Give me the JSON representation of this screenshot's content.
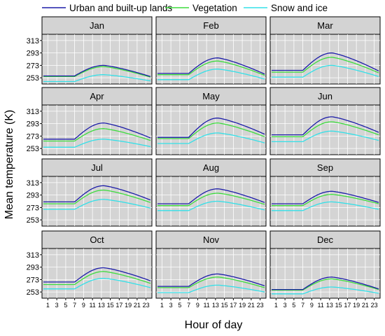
{
  "chart_data": {
    "type": "line",
    "title": "",
    "xlabel": "Hour of day",
    "ylabel": "Mean temperature (K)",
    "ylim": [
      243,
      323
    ],
    "xlim": [
      0,
      24
    ],
    "y_ticks": [
      253,
      273,
      293,
      313
    ],
    "x_ticks": [
      1,
      3,
      5,
      7,
      9,
      11,
      13,
      15,
      17,
      19,
      21,
      23
    ],
    "grid": true,
    "legend_position": "top",
    "legend": [
      {
        "name": "Urban and built-up lands",
        "color": "#1c1ca8"
      },
      {
        "name": "Vegetation",
        "color": "#3ddc3d"
      },
      {
        "name": "Snow and ice",
        "color": "#33e0e8"
      }
    ],
    "panels": [
      {
        "label": "Jan",
        "urban": {
          "base": 256,
          "amp": 17,
          "end": 255
        },
        "veg": {
          "base": 255,
          "amp": 16,
          "end": 254
        },
        "snow": {
          "base": 247,
          "amp": 11,
          "end": 248
        }
      },
      {
        "label": "Feb",
        "urban": {
          "base": 260,
          "amp": 25,
          "end": 259
        },
        "veg": {
          "base": 258,
          "amp": 22,
          "end": 257
        },
        "snow": {
          "base": 250,
          "amp": 17,
          "end": 251
        }
      },
      {
        "label": "Mar",
        "urban": {
          "base": 265,
          "amp": 28,
          "end": 264
        },
        "veg": {
          "base": 262,
          "amp": 24,
          "end": 261
        },
        "snow": {
          "base": 254,
          "amp": 19,
          "end": 255
        }
      },
      {
        "label": "Apr",
        "urban": {
          "base": 268,
          "amp": 26,
          "end": 270
        },
        "veg": {
          "base": 265,
          "amp": 20,
          "end": 266
        },
        "snow": {
          "base": 255,
          "amp": 13,
          "end": 256
        }
      },
      {
        "label": "May",
        "urban": {
          "base": 271,
          "amp": 31,
          "end": 276
        },
        "veg": {
          "base": 269,
          "amp": 25,
          "end": 272
        },
        "snow": {
          "base": 261,
          "amp": 17,
          "end": 262
        }
      },
      {
        "label": "Jun",
        "urban": {
          "base": 275,
          "amp": 29,
          "end": 279
        },
        "veg": {
          "base": 272,
          "amp": 24,
          "end": 275
        },
        "snow": {
          "base": 264,
          "amp": 17,
          "end": 266
        }
      },
      {
        "label": "Jul",
        "urban": {
          "base": 282,
          "amp": 26,
          "end": 285
        },
        "veg": {
          "base": 279,
          "amp": 22,
          "end": 281
        },
        "snow": {
          "base": 270,
          "amp": 16,
          "end": 272
        }
      },
      {
        "label": "Aug",
        "urban": {
          "base": 279,
          "amp": 24,
          "end": 281
        },
        "veg": {
          "base": 276,
          "amp": 20,
          "end": 278
        },
        "snow": {
          "base": 268,
          "amp": 15,
          "end": 269
        }
      },
      {
        "label": "Sep",
        "urban": {
          "base": 279,
          "amp": 20,
          "end": 281
        },
        "veg": {
          "base": 276,
          "amp": 18,
          "end": 279
        },
        "snow": {
          "base": 268,
          "amp": 14,
          "end": 270
        }
      },
      {
        "label": "Oct",
        "urban": {
          "base": 269,
          "amp": 23,
          "end": 271
        },
        "veg": {
          "base": 265,
          "amp": 21,
          "end": 267
        },
        "snow": {
          "base": 258,
          "amp": 17,
          "end": 260
        }
      },
      {
        "label": "Nov",
        "urban": {
          "base": 262,
          "amp": 20,
          "end": 263
        },
        "veg": {
          "base": 260,
          "amp": 17,
          "end": 260
        },
        "snow": {
          "base": 252,
          "amp": 12,
          "end": 253
        }
      },
      {
        "label": "Dec",
        "urban": {
          "base": 257,
          "amp": 20,
          "end": 258
        },
        "veg": {
          "base": 256,
          "amp": 18,
          "end": 257
        },
        "snow": {
          "base": 250,
          "amp": 11,
          "end": 251
        }
      }
    ]
  }
}
